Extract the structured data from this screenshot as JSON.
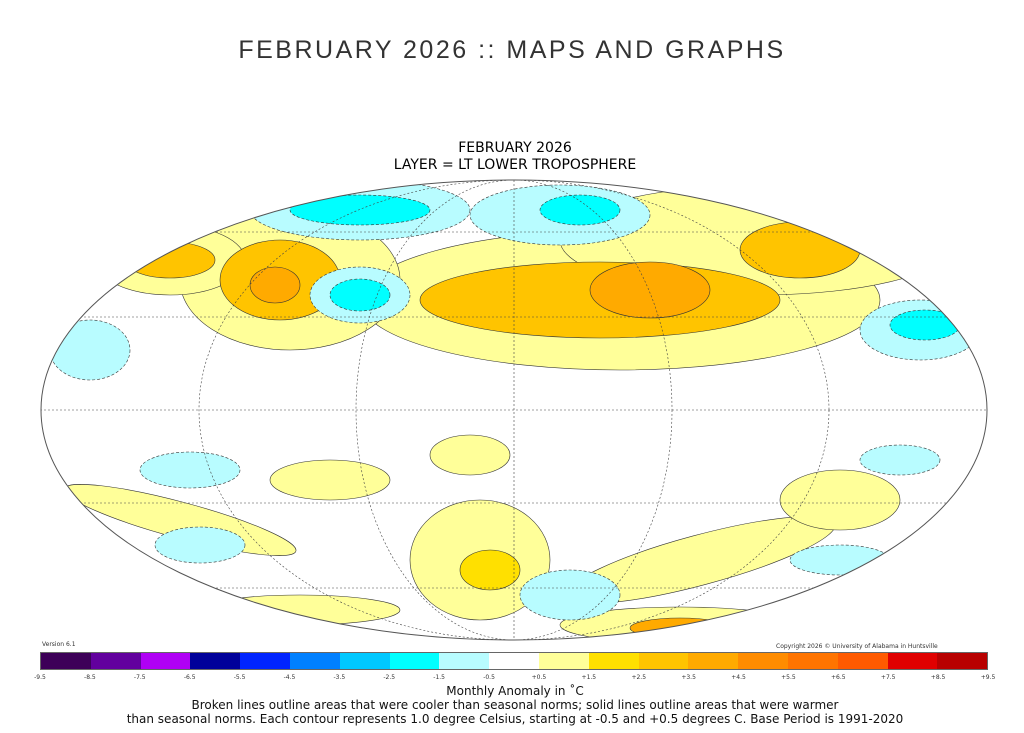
{
  "page": {
    "title": "FEBRUARY 2026 :: MAPS AND GRAPHS"
  },
  "map": {
    "title_line1": "FEBRUARY 2026",
    "title_line2": "LAYER = LT LOWER TROPOSPHERE",
    "version": "Version 6.1",
    "copyright": "Copyright 2026 © University of Alabama in Huntsville",
    "projection": "mollweide"
  },
  "legend": {
    "label": "Monthly Anomaly in ˚C",
    "colors": [
      "#3d0058",
      "#62009e",
      "#b000f5",
      "#00009a",
      "#0024ff",
      "#0080ff",
      "#00c8ff",
      "#00ffff",
      "#b8fcff",
      "#ffffff",
      "#ffff99",
      "#ffe000",
      "#ffc400",
      "#ffaa00",
      "#ff8c00",
      "#ff7400",
      "#ff5a00",
      "#e00000",
      "#b80000"
    ],
    "ticks": [
      "-9.5",
      "-8.5",
      "-7.5",
      "-6.5",
      "-5.5",
      "-4.5",
      "-3.5",
      "-2.5",
      "-1.5",
      "-0.5",
      "+0.5",
      "+1.5",
      "+2.5",
      "+3.5",
      "+4.5",
      "+5.5",
      "+6.5",
      "+7.5",
      "+8.5",
      "+9.5"
    ]
  },
  "caption": {
    "line1": "Broken lines outline areas that were cooler than seasonal norms; solid lines outline areas that were warmer",
    "line2": "than seasonal norms. Each contour represents 1.0 degree Celsius, starting at -0.5 and +0.5 degrees C. Base Period is 1991-2020"
  }
}
